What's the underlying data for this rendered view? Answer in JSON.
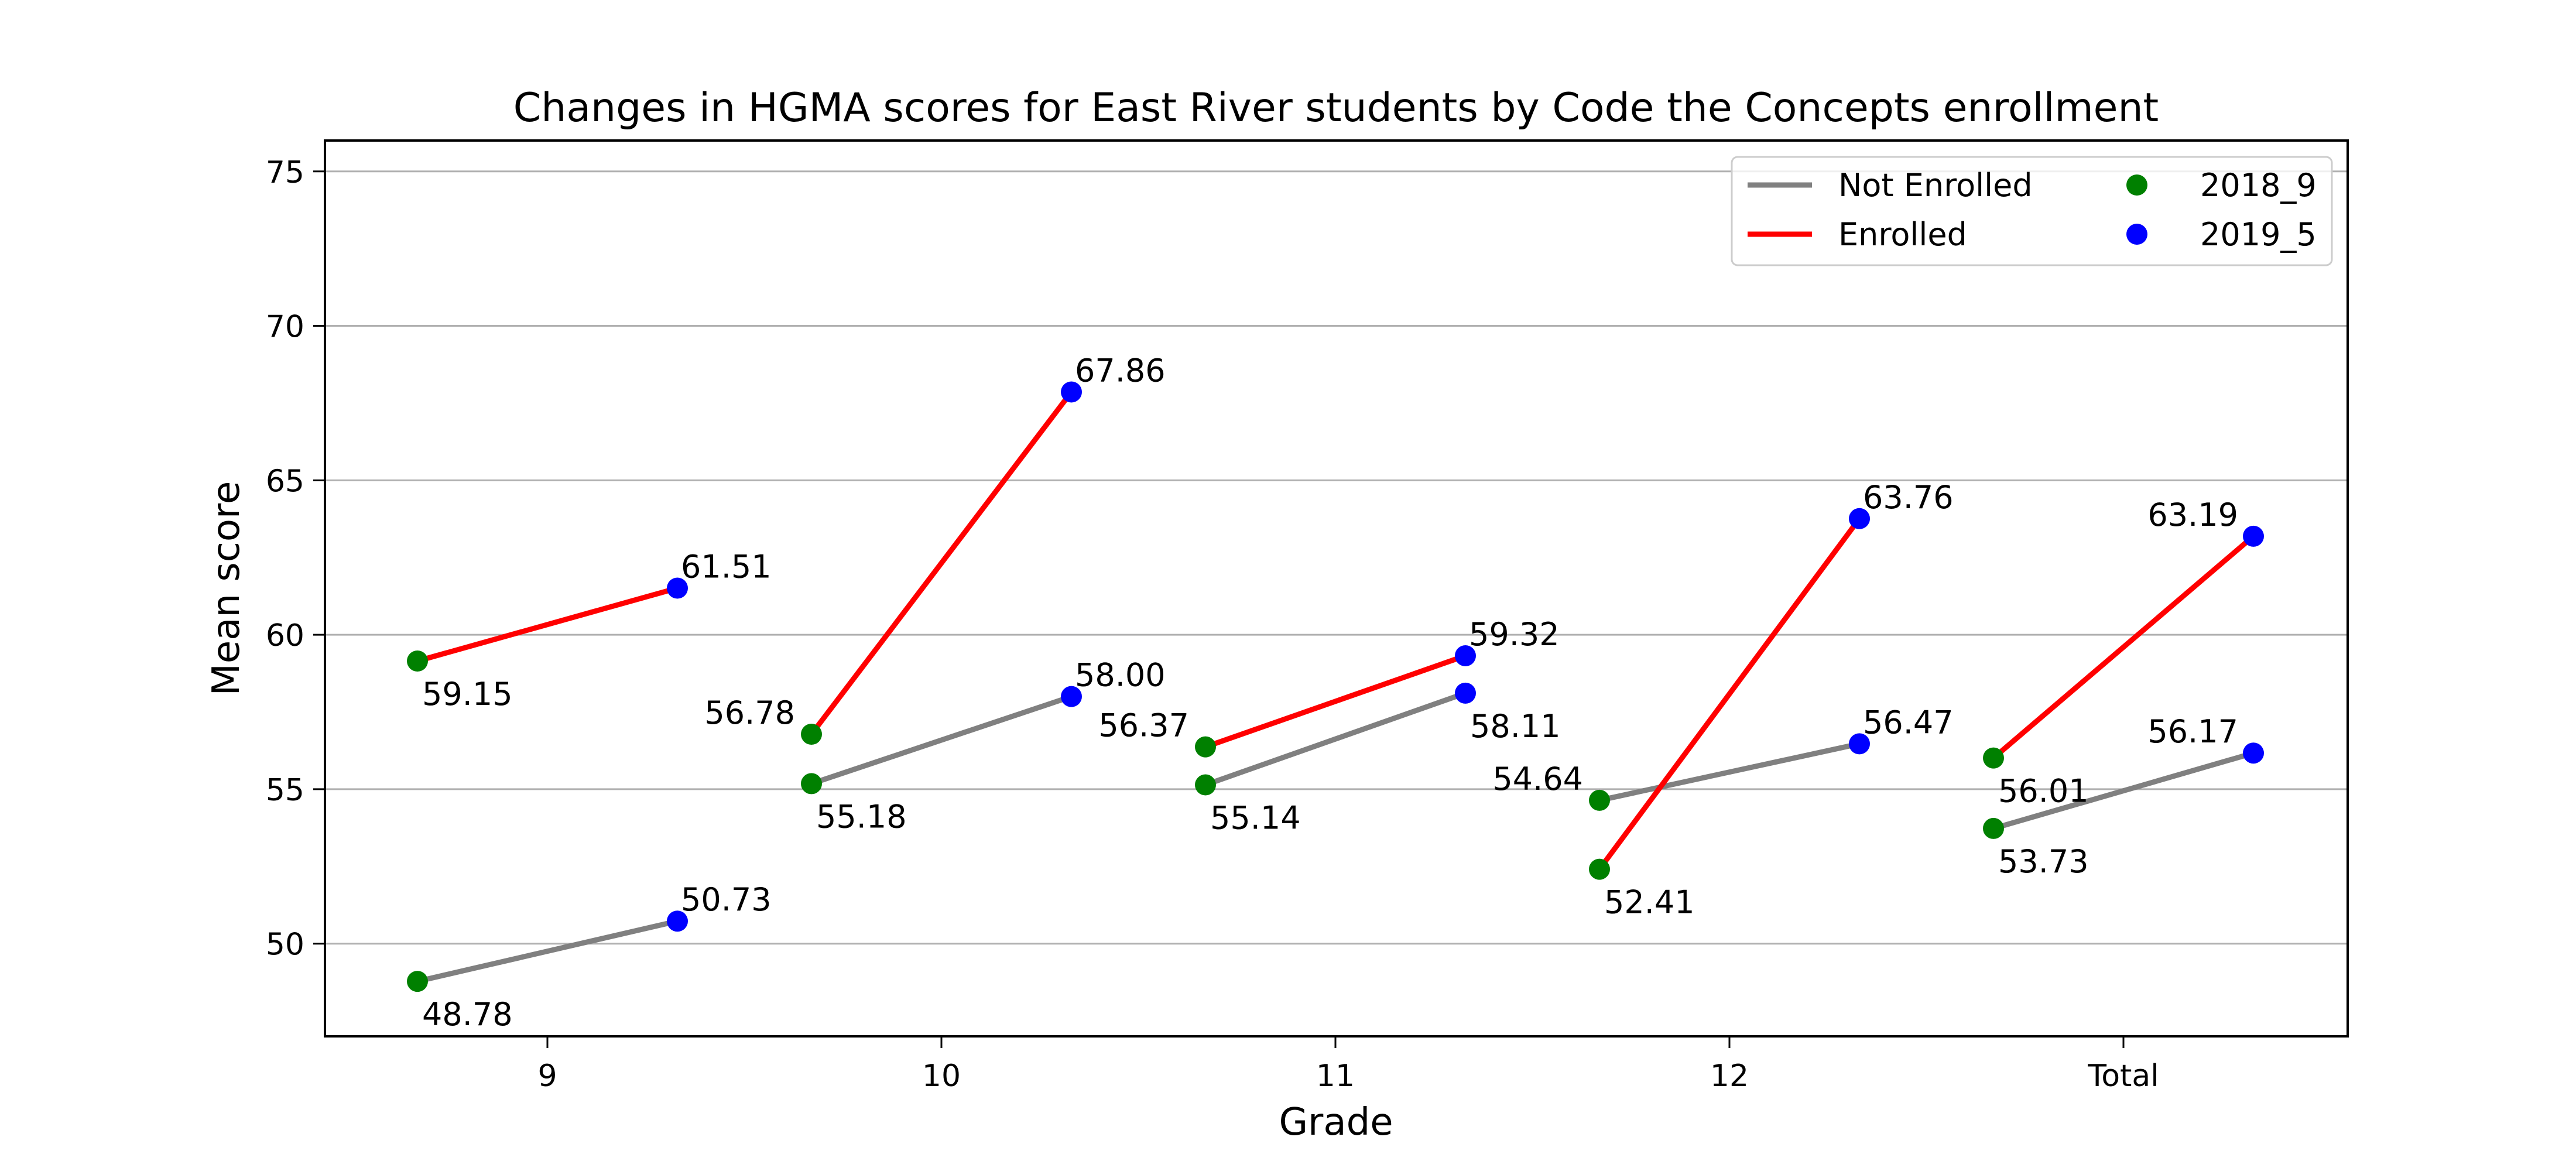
{
  "chart_data": {
    "type": "line",
    "title": "Changes in HGMA scores for East River students by Code the Concepts enrollment",
    "xlabel": "Grade",
    "ylabel": "Mean score",
    "categories": [
      "9",
      "10",
      "11",
      "12",
      "Total"
    ],
    "ylim": [
      47,
      76
    ],
    "yticks": [
      50,
      55,
      60,
      65,
      70,
      75
    ],
    "grid": "horizontal",
    "legend_position": "top-right",
    "point_series": [
      {
        "name": "2018_9",
        "color": "#008000"
      },
      {
        "name": "2019_5",
        "color": "#0000ff"
      }
    ],
    "line_series": [
      {
        "name": "Not Enrolled",
        "color": "#808080",
        "start_values": [
          48.78,
          55.18,
          55.14,
          54.64,
          53.73
        ],
        "end_values": [
          50.73,
          58.0,
          58.11,
          56.47,
          56.17
        ],
        "start_labels": [
          "48.78",
          "55.18",
          "55.14",
          "54.64",
          "53.73"
        ],
        "end_labels": [
          "50.73",
          "58.00",
          "58.11",
          "56.47",
          "56.17"
        ]
      },
      {
        "name": "Enrolled",
        "color": "#ff0000",
        "start_values": [
          59.15,
          56.78,
          56.37,
          52.41,
          56.01
        ],
        "end_values": [
          61.51,
          67.86,
          59.32,
          63.76,
          63.19
        ],
        "start_labels": [
          "59.15",
          "56.78",
          "56.37",
          "52.41",
          "56.01"
        ],
        "end_labels": [
          "61.51",
          "67.86",
          "59.32",
          "63.76",
          "63.19"
        ]
      }
    ]
  }
}
